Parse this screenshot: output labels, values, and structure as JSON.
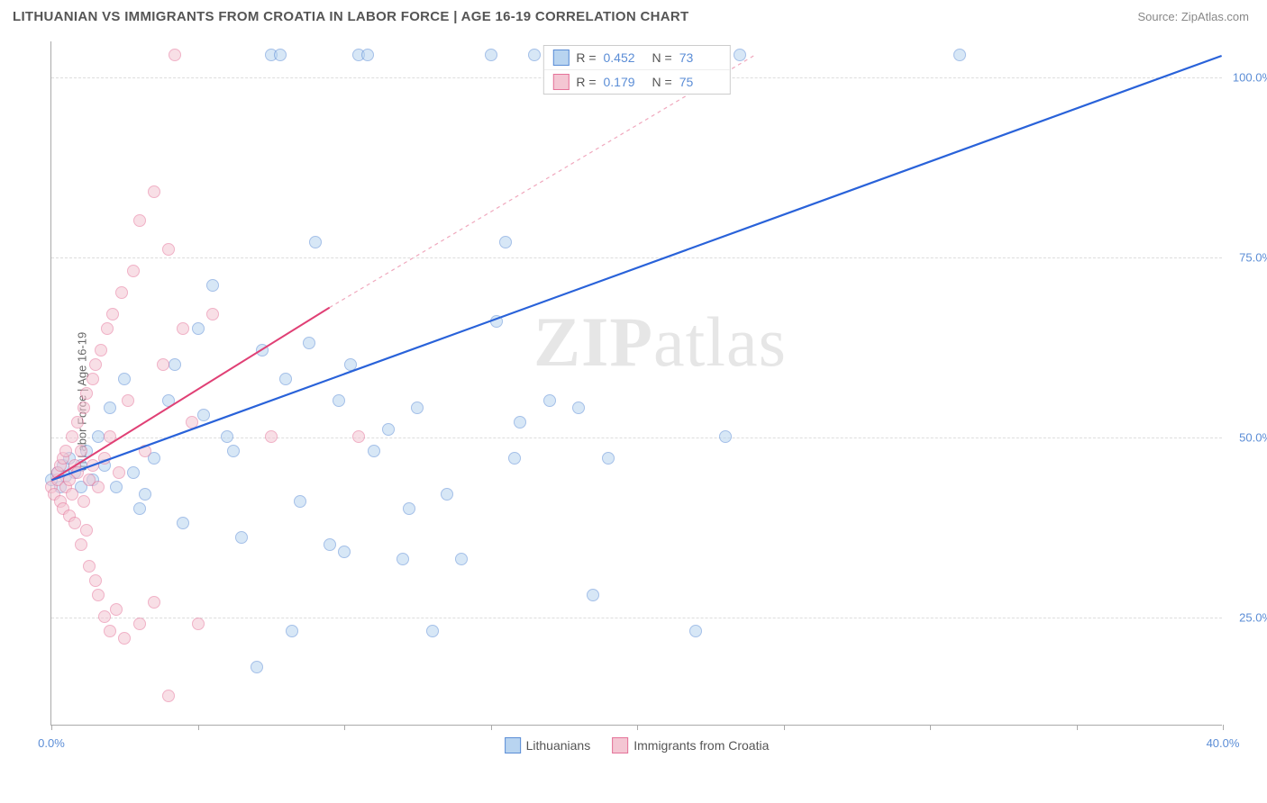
{
  "header": {
    "title": "LITHUANIAN VS IMMIGRANTS FROM CROATIA IN LABOR FORCE | AGE 16-19 CORRELATION CHART",
    "source_prefix": "Source: ",
    "source_name": "ZipAtlas.com"
  },
  "chart": {
    "type": "scatter",
    "ylabel": "In Labor Force | Age 16-19",
    "background_color": "#ffffff",
    "grid_color": "#dddddd",
    "axis_color": "#aaaaaa",
    "xlim": [
      0,
      40
    ],
    "ylim": [
      10,
      105
    ],
    "xtick_positions": [
      0,
      5,
      10,
      15,
      20,
      25,
      30,
      35,
      40
    ],
    "xtick_labels_visible": {
      "0": "0.0%",
      "40": "40.0%"
    },
    "ytick_positions": [
      25,
      50,
      75,
      100
    ],
    "ytick_labels": [
      "25.0%",
      "50.0%",
      "75.0%",
      "100.0%"
    ],
    "marker_radius": 7,
    "marker_stroke_width": 1.2,
    "title_fontsize": 15,
    "label_fontsize": 13,
    "tick_label_color": "#5b8dd6",
    "watermark_text": "ZIPatlas",
    "watermark_color": "#555555",
    "watermark_opacity": 0.14
  },
  "series": [
    {
      "name": "Lithuanians",
      "fill_color": "#b8d4f0",
      "stroke_color": "#5b8dd6",
      "fill_opacity": 0.55,
      "R": "0.452",
      "N": "73",
      "trend": {
        "x1": 0,
        "y1": 44,
        "x2": 40,
        "y2": 103,
        "color": "#2962d9",
        "width": 2.2,
        "dash": "none"
      },
      "points": [
        [
          0.0,
          44
        ],
        [
          0.2,
          45
        ],
        [
          0.3,
          43
        ],
        [
          0.4,
          46
        ],
        [
          0.5,
          44.5
        ],
        [
          0.6,
          47
        ],
        [
          0.8,
          45
        ],
        [
          1.0,
          43
        ],
        [
          1.0,
          46
        ],
        [
          1.2,
          48
        ],
        [
          1.4,
          44
        ],
        [
          1.6,
          50
        ],
        [
          1.8,
          46
        ],
        [
          2.0,
          54
        ],
        [
          2.2,
          43
        ],
        [
          2.5,
          58
        ],
        [
          2.8,
          45
        ],
        [
          3.0,
          40
        ],
        [
          3.2,
          42
        ],
        [
          3.5,
          47
        ],
        [
          4.0,
          55
        ],
        [
          4.2,
          60
        ],
        [
          4.5,
          38
        ],
        [
          5.0,
          65
        ],
        [
          5.2,
          53
        ],
        [
          5.5,
          71
        ],
        [
          6.0,
          50
        ],
        [
          6.2,
          48
        ],
        [
          6.5,
          36
        ],
        [
          7.0,
          18
        ],
        [
          7.2,
          62
        ],
        [
          7.5,
          103
        ],
        [
          7.8,
          103
        ],
        [
          8.0,
          58
        ],
        [
          8.2,
          23
        ],
        [
          8.5,
          41
        ],
        [
          8.8,
          63
        ],
        [
          9.0,
          77
        ],
        [
          9.5,
          35
        ],
        [
          9.8,
          55
        ],
        [
          10.0,
          34
        ],
        [
          10.2,
          60
        ],
        [
          10.5,
          103
        ],
        [
          10.8,
          103
        ],
        [
          11.0,
          48
        ],
        [
          11.5,
          51
        ],
        [
          12.0,
          33
        ],
        [
          12.2,
          40
        ],
        [
          12.5,
          54
        ],
        [
          13.0,
          23
        ],
        [
          13.5,
          42
        ],
        [
          14.0,
          33
        ],
        [
          15.0,
          103
        ],
        [
          15.2,
          66
        ],
        [
          15.5,
          77
        ],
        [
          15.8,
          47
        ],
        [
          16.0,
          52
        ],
        [
          16.5,
          103
        ],
        [
          17.0,
          55
        ],
        [
          18.0,
          54
        ],
        [
          18.5,
          28
        ],
        [
          19.0,
          47
        ],
        [
          22.0,
          23
        ],
        [
          23.0,
          50
        ],
        [
          23.5,
          103
        ],
        [
          31.0,
          103
        ]
      ]
    },
    {
      "name": "Immigrants from Croatia",
      "fill_color": "#f4c6d3",
      "stroke_color": "#e57399",
      "fill_opacity": 0.55,
      "R": "0.179",
      "N": "75",
      "trend_solid": {
        "x1": 0,
        "y1": 44,
        "x2": 9.5,
        "y2": 68,
        "color": "#e04075",
        "width": 2.0
      },
      "trend_dashed": {
        "x1": 9.5,
        "y1": 68,
        "x2": 24,
        "y2": 103,
        "color": "#f0a8bd",
        "width": 1.2,
        "dash": "4,4"
      },
      "points": [
        [
          0.0,
          43
        ],
        [
          0.1,
          42
        ],
        [
          0.2,
          44
        ],
        [
          0.2,
          45
        ],
        [
          0.3,
          41
        ],
        [
          0.3,
          46
        ],
        [
          0.4,
          40
        ],
        [
          0.4,
          47
        ],
        [
          0.5,
          43
        ],
        [
          0.5,
          48
        ],
        [
          0.6,
          39
        ],
        [
          0.6,
          44
        ],
        [
          0.7,
          50
        ],
        [
          0.7,
          42
        ],
        [
          0.8,
          46
        ],
        [
          0.8,
          38
        ],
        [
          0.9,
          52
        ],
        [
          0.9,
          45
        ],
        [
          1.0,
          35
        ],
        [
          1.0,
          48
        ],
        [
          1.1,
          54
        ],
        [
          1.1,
          41
        ],
        [
          1.2,
          37
        ],
        [
          1.2,
          56
        ],
        [
          1.3,
          44
        ],
        [
          1.3,
          32
        ],
        [
          1.4,
          58
        ],
        [
          1.4,
          46
        ],
        [
          1.5,
          30
        ],
        [
          1.5,
          60
        ],
        [
          1.6,
          43
        ],
        [
          1.6,
          28
        ],
        [
          1.7,
          62
        ],
        [
          1.8,
          25
        ],
        [
          1.8,
          47
        ],
        [
          1.9,
          65
        ],
        [
          2.0,
          23
        ],
        [
          2.0,
          50
        ],
        [
          2.1,
          67
        ],
        [
          2.2,
          26
        ],
        [
          2.3,
          45
        ],
        [
          2.4,
          70
        ],
        [
          2.5,
          22
        ],
        [
          2.6,
          55
        ],
        [
          2.8,
          73
        ],
        [
          3.0,
          24
        ],
        [
          3.0,
          80
        ],
        [
          3.2,
          48
        ],
        [
          3.5,
          84
        ],
        [
          3.5,
          27
        ],
        [
          3.8,
          60
        ],
        [
          4.0,
          14
        ],
        [
          4.0,
          76
        ],
        [
          4.2,
          103
        ],
        [
          4.5,
          65
        ],
        [
          4.8,
          52
        ],
        [
          5.0,
          24
        ],
        [
          5.5,
          67
        ],
        [
          7.5,
          50
        ],
        [
          10.5,
          50
        ]
      ]
    }
  ],
  "legend": {
    "r_prefix": "R =",
    "n_prefix": "N ="
  },
  "bottom_legend": {
    "items": [
      "Lithuanians",
      "Immigrants from Croatia"
    ]
  }
}
